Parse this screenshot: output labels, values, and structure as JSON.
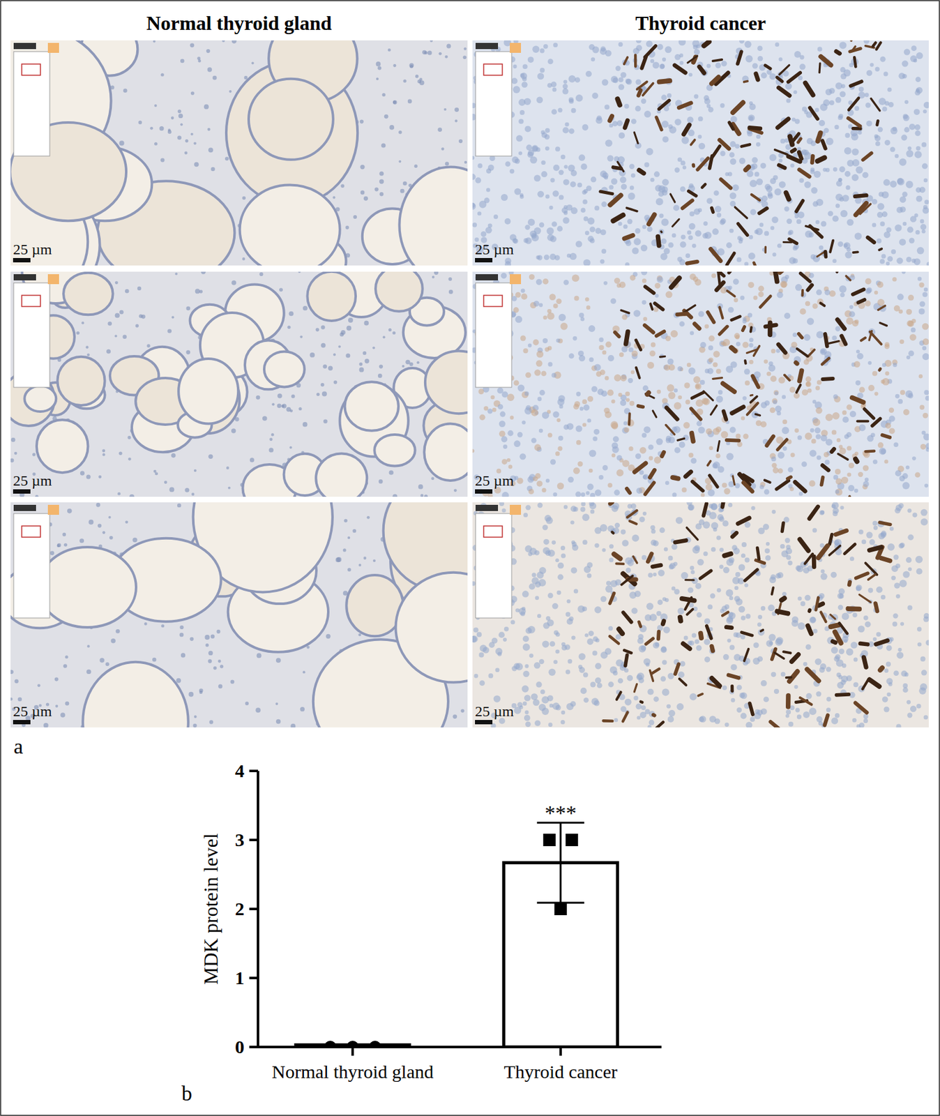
{
  "figure": {
    "column_titles": [
      "Normal thyroid gland",
      "Thyroid cancer"
    ],
    "scale_labels": [
      "25 µm",
      "25 µm",
      "25 µm",
      "25 µm",
      "25 µm",
      "25 µm"
    ],
    "panel_labels": [
      "a",
      "b"
    ]
  },
  "chart_data": {
    "type": "bar",
    "y_label": "MDK protein level",
    "categories": [
      "Normal thyroid gland",
      "Thyroid cancer"
    ],
    "values": [
      0.03,
      2.67
    ],
    "errors": [
      0,
      0.58
    ],
    "points": [
      [
        0,
        0,
        0
      ],
      [
        3,
        3,
        2
      ]
    ],
    "series_markers": [
      "circle",
      "square"
    ],
    "annotations": [
      {
        "text": "***",
        "index": 1
      }
    ],
    "ylim": [
      0,
      4
    ],
    "yticks": [
      0,
      1,
      2,
      3,
      4
    ],
    "grid": false,
    "color": "#ffffff"
  }
}
